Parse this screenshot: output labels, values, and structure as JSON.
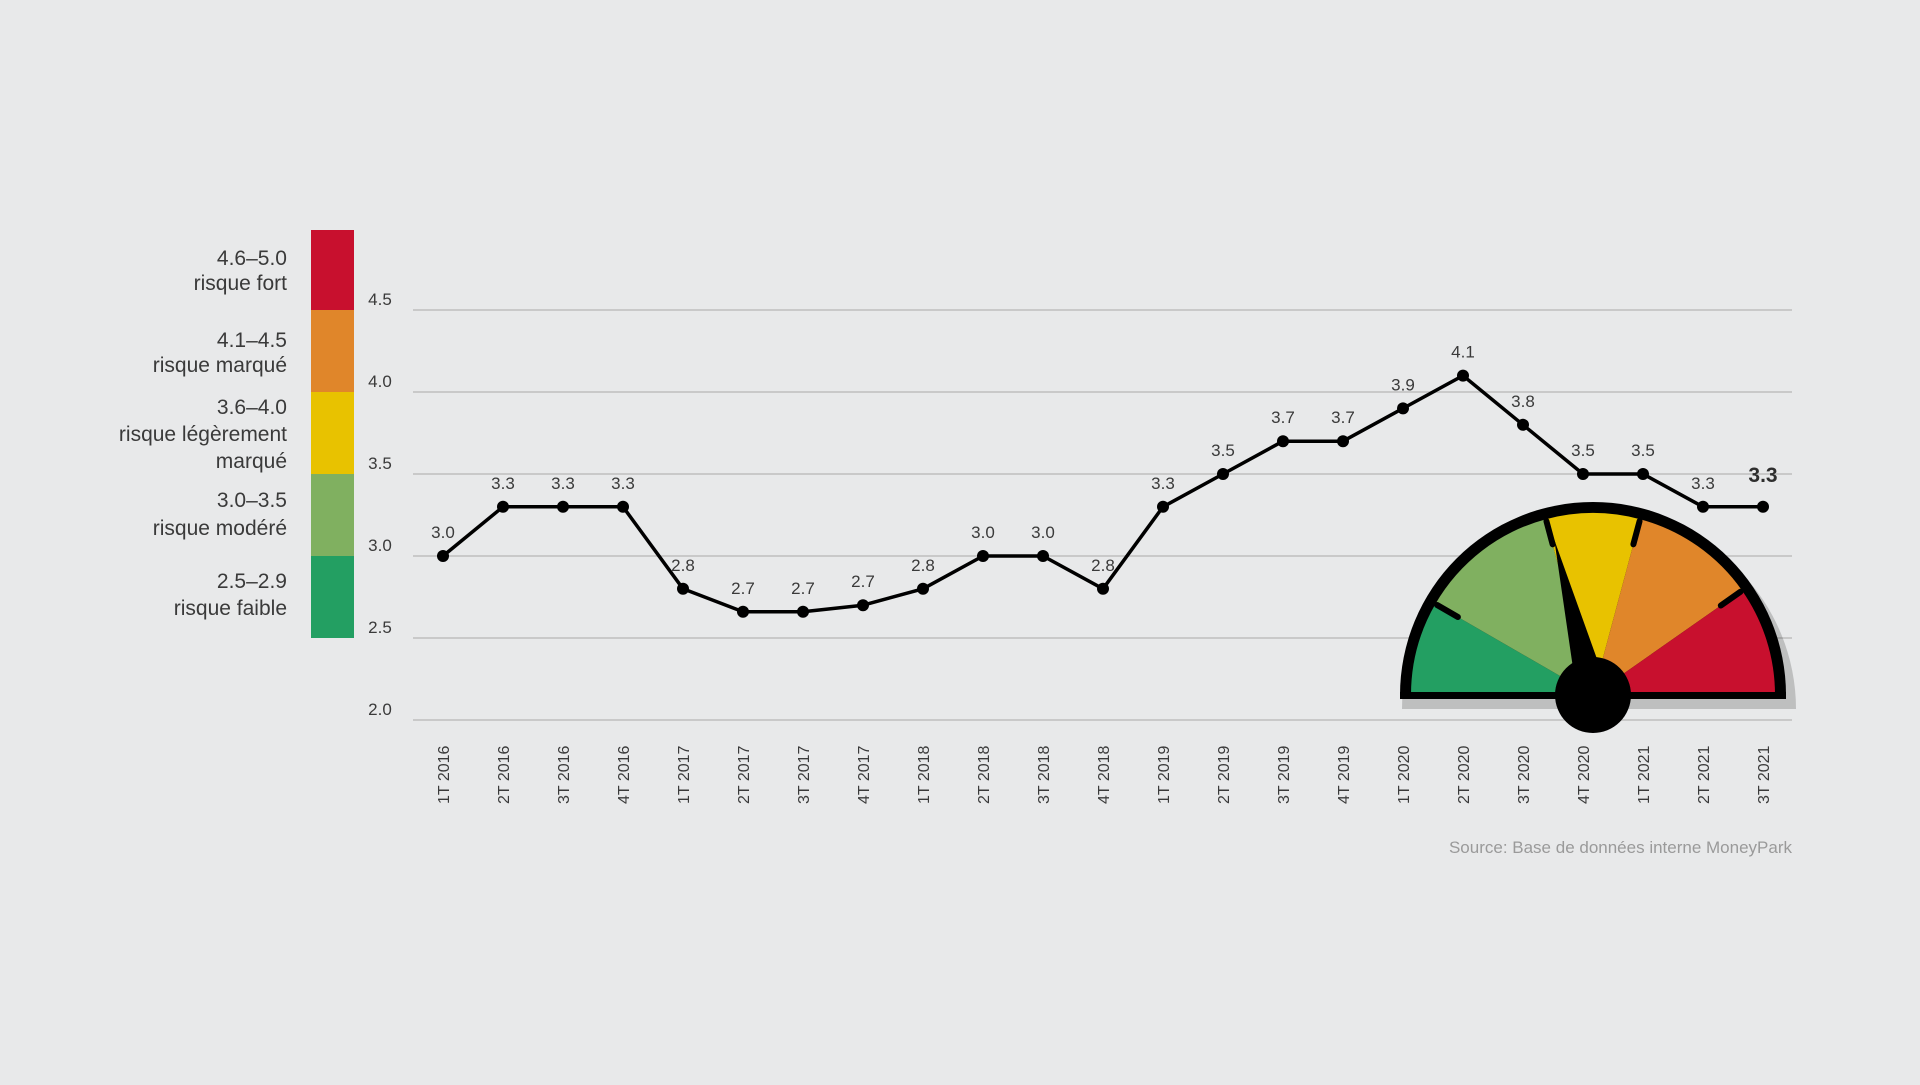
{
  "chart_data": {
    "type": "line",
    "categories": [
      "1T 2016",
      "2T 2016",
      "3T 2016",
      "4T 2016",
      "1T 2017",
      "2T 2017",
      "3T 2017",
      "4T 2017",
      "1T 2018",
      "2T 2018",
      "3T 2018",
      "4T 2018",
      "1T 2019",
      "2T 2019",
      "3T 2019",
      "4T 2019",
      "1T 2020",
      "2T 2020",
      "3T 2020",
      "4T 2020",
      "1T 2021",
      "2T 2021",
      "3T 2021"
    ],
    "series": [
      {
        "values": [
          3.0,
          3.3,
          3.3,
          3.3,
          2.8,
          2.66,
          2.66,
          2.7,
          2.8,
          3.0,
          3.0,
          2.8,
          3.3,
          3.5,
          3.7,
          3.7,
          3.9,
          4.1,
          3.8,
          3.5,
          3.5,
          3.3,
          3.3
        ],
        "labels": [
          "3.0",
          "3.3",
          "3.3",
          "3.3",
          "2.8",
          "2.7",
          "2.7",
          "2.7",
          "2.8",
          "3.0",
          "3.0",
          "2.8",
          "3.3",
          "3.5",
          "3.7",
          "3.7",
          "3.9",
          "4.1",
          "3.8",
          "3.5",
          "3.5",
          "3.3",
          "3.3"
        ],
        "color": "#000000"
      }
    ],
    "ylim": [
      2.0,
      4.5
    ],
    "yticks": [
      "2.0",
      "2.5",
      "3.0",
      "3.5",
      "4.0",
      "4.5"
    ],
    "grid": true,
    "source": "Source: Base de données interne MoneyPark",
    "risk_scale": [
      {
        "range": "4.6–5.0",
        "label": "risque fort",
        "color": "#c8102e",
        "from": 4.5,
        "to": 5.0
      },
      {
        "range": "4.1–4.5",
        "label": "risque marqué",
        "color": "#e0862a",
        "from": 4.0,
        "to": 4.5
      },
      {
        "range": "3.6–4.0",
        "label": "risque légèrement marqué",
        "color": "#e8c200",
        "from": 3.5,
        "to": 4.0
      },
      {
        "range": "3.0–3.5",
        "label": "risque modéré",
        "color": "#80b060",
        "from": 3.0,
        "to": 3.5
      },
      {
        "range": "2.5–2.9",
        "label": "risque faible",
        "color": "#239f62",
        "from": 2.5,
        "to": 3.0
      }
    ],
    "gauge": {
      "value": 3.3,
      "segments": [
        "#239f62",
        "#80b060",
        "#e8c200",
        "#e0862a",
        "#c8102e"
      ]
    }
  }
}
